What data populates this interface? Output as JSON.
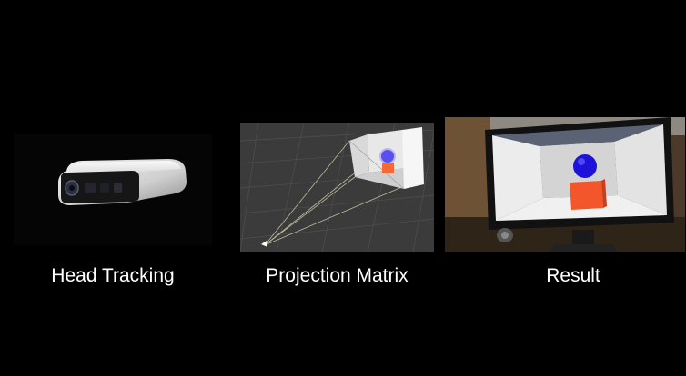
{
  "captions": {
    "head_tracking": "Head Tracking",
    "projection_matrix": "Projection Matrix",
    "result": "Result"
  },
  "colors": {
    "background": "#000000",
    "caption_text": "#ffffff",
    "sphere": "#2a1fd6",
    "cube": "#f2552b"
  }
}
